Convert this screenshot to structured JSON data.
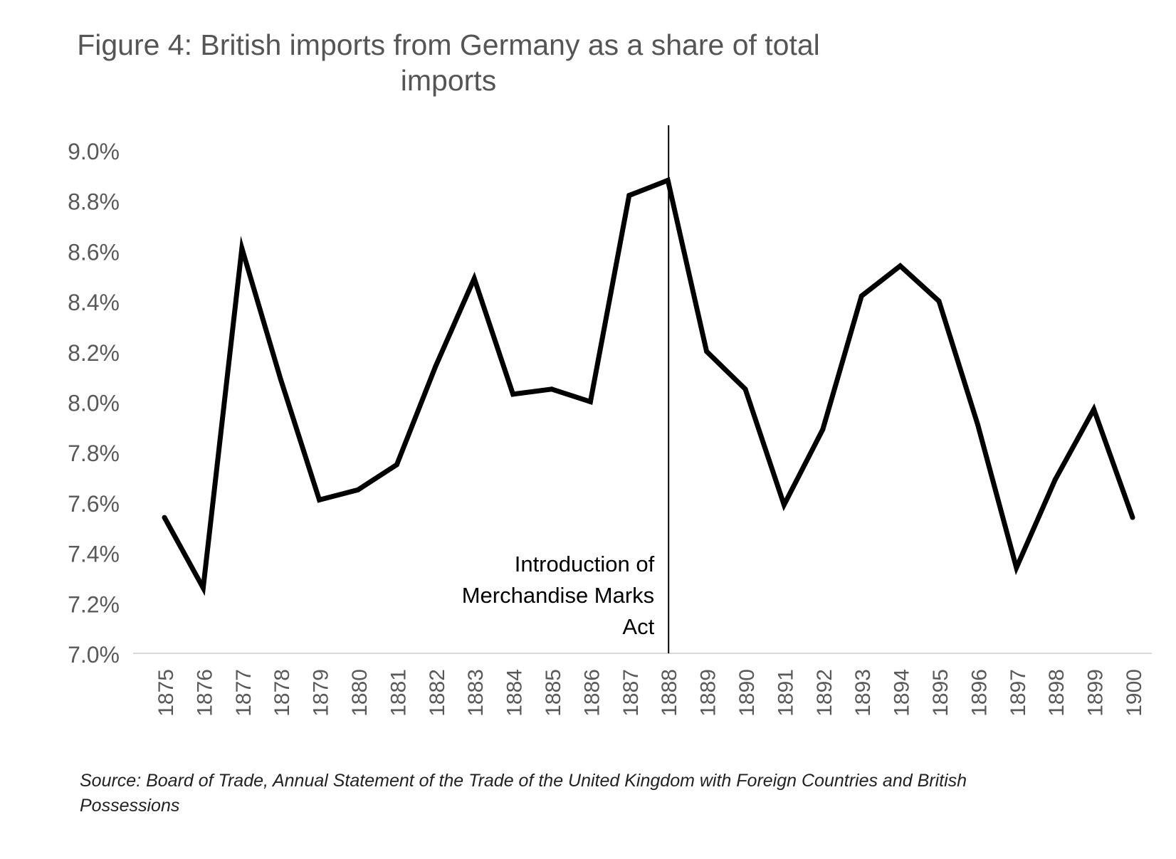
{
  "chart_data": {
    "type": "line",
    "title": "Figure 4: British imports from Germany as a share of total imports",
    "xlabel": "",
    "ylabel": "",
    "categories": [
      "1875",
      "1876",
      "1877",
      "1878",
      "1879",
      "1880",
      "1881",
      "1882",
      "1883",
      "1884",
      "1885",
      "1886",
      "1887",
      "1888",
      "1889",
      "1890",
      "1891",
      "1892",
      "1893",
      "1894",
      "1895",
      "1896",
      "1897",
      "1898",
      "1899",
      "1900"
    ],
    "series": [
      {
        "name": "British imports from Germany as a share of total imports",
        "values": [
          7.54,
          7.26,
          8.61,
          8.09,
          7.61,
          7.65,
          7.75,
          8.14,
          8.49,
          8.03,
          8.05,
          8.0,
          8.82,
          8.88,
          8.2,
          8.05,
          7.59,
          7.89,
          8.42,
          8.54,
          8.4,
          7.91,
          7.34,
          7.69,
          7.97,
          7.54
        ],
        "color": "#000000"
      }
    ],
    "ylim": [
      7.0,
      9.0
    ],
    "y_ticks": [
      7.0,
      7.2,
      7.4,
      7.6,
      7.8,
      8.0,
      8.2,
      8.4,
      8.6,
      8.8,
      9.0
    ],
    "y_tick_labels": [
      "7.0%",
      "7.2%",
      "7.4%",
      "7.6%",
      "7.8%",
      "8.0%",
      "8.2%",
      "8.4%",
      "8.6%",
      "8.8%",
      "9.0%"
    ],
    "grid": false,
    "legend": "none",
    "annotations": [
      {
        "at_category": "1888",
        "kind": "vertical-line",
        "lines": [
          "Introduction of",
          "Merchandise Marks",
          "Act"
        ]
      }
    ],
    "source": "Source: Board of Trade, Annual Statement of the Trade of the United Kingdom with Foreign Countries and British Possessions"
  }
}
